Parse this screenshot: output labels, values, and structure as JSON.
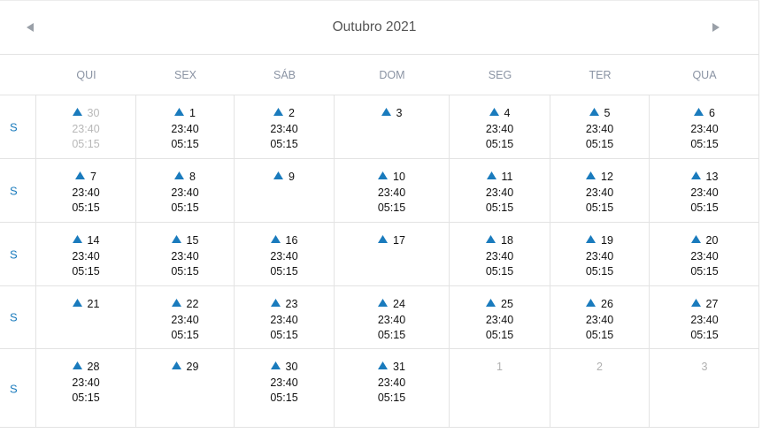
{
  "calendar": {
    "title": "Outubro 2021",
    "prev_icon": "chevron-left-icon",
    "next_icon": "chevron-right-icon",
    "colors": {
      "accent": "#1a7bbd",
      "muted": "#b8b8b8",
      "grid": "#e3e3e3"
    },
    "weekdays": [
      "QUI",
      "SEX",
      "SÁB",
      "DOM",
      "SEG",
      "TER",
      "QUA"
    ],
    "weeks": [
      {
        "label": "S",
        "days": [
          {
            "day": "30",
            "marker": true,
            "other": true,
            "times": [
              "23:40",
              "05:15"
            ]
          },
          {
            "day": "1",
            "marker": true,
            "times": [
              "23:40",
              "05:15"
            ]
          },
          {
            "day": "2",
            "marker": true,
            "times": [
              "23:40",
              "05:15"
            ]
          },
          {
            "day": "3",
            "marker": true,
            "times": []
          },
          {
            "day": "4",
            "marker": true,
            "times": [
              "23:40",
              "05:15"
            ]
          },
          {
            "day": "5",
            "marker": true,
            "times": [
              "23:40",
              "05:15"
            ]
          },
          {
            "day": "6",
            "marker": true,
            "times": [
              "23:40",
              "05:15"
            ]
          }
        ]
      },
      {
        "label": "S",
        "days": [
          {
            "day": "7",
            "marker": true,
            "times": [
              "23:40",
              "05:15"
            ]
          },
          {
            "day": "8",
            "marker": true,
            "times": [
              "23:40",
              "05:15"
            ]
          },
          {
            "day": "9",
            "marker": true,
            "times": []
          },
          {
            "day": "10",
            "marker": true,
            "times": [
              "23:40",
              "05:15"
            ]
          },
          {
            "day": "11",
            "marker": true,
            "times": [
              "23:40",
              "05:15"
            ]
          },
          {
            "day": "12",
            "marker": true,
            "times": [
              "23:40",
              "05:15"
            ]
          },
          {
            "day": "13",
            "marker": true,
            "times": [
              "23:40",
              "05:15"
            ]
          }
        ]
      },
      {
        "label": "S",
        "days": [
          {
            "day": "14",
            "marker": true,
            "times": [
              "23:40",
              "05:15"
            ]
          },
          {
            "day": "15",
            "marker": true,
            "times": [
              "23:40",
              "05:15"
            ]
          },
          {
            "day": "16",
            "marker": true,
            "times": [
              "23:40",
              "05:15"
            ]
          },
          {
            "day": "17",
            "marker": true,
            "times": []
          },
          {
            "day": "18",
            "marker": true,
            "times": [
              "23:40",
              "05:15"
            ]
          },
          {
            "day": "19",
            "marker": true,
            "times": [
              "23:40",
              "05:15"
            ]
          },
          {
            "day": "20",
            "marker": true,
            "times": [
              "23:40",
              "05:15"
            ]
          }
        ]
      },
      {
        "label": "S",
        "days": [
          {
            "day": "21",
            "marker": true,
            "times": []
          },
          {
            "day": "22",
            "marker": true,
            "times": [
              "23:40",
              "05:15"
            ]
          },
          {
            "day": "23",
            "marker": true,
            "times": [
              "23:40",
              "05:15"
            ]
          },
          {
            "day": "24",
            "marker": true,
            "times": [
              "23:40",
              "05:15"
            ]
          },
          {
            "day": "25",
            "marker": true,
            "times": [
              "23:40",
              "05:15"
            ]
          },
          {
            "day": "26",
            "marker": true,
            "times": [
              "23:40",
              "05:15"
            ]
          },
          {
            "day": "27",
            "marker": true,
            "times": [
              "23:40",
              "05:15"
            ]
          }
        ]
      },
      {
        "label": "S",
        "days": [
          {
            "day": "28",
            "marker": true,
            "times": [
              "23:40",
              "05:15"
            ]
          },
          {
            "day": "29",
            "marker": true,
            "times": []
          },
          {
            "day": "30",
            "marker": true,
            "times": [
              "23:40",
              "05:15"
            ]
          },
          {
            "day": "31",
            "marker": true,
            "times": [
              "23:40",
              "05:15"
            ]
          },
          {
            "day": "1",
            "marker": false,
            "other": true,
            "times": []
          },
          {
            "day": "2",
            "marker": false,
            "other": true,
            "times": []
          },
          {
            "day": "3",
            "marker": false,
            "other": true,
            "times": []
          }
        ]
      }
    ]
  }
}
